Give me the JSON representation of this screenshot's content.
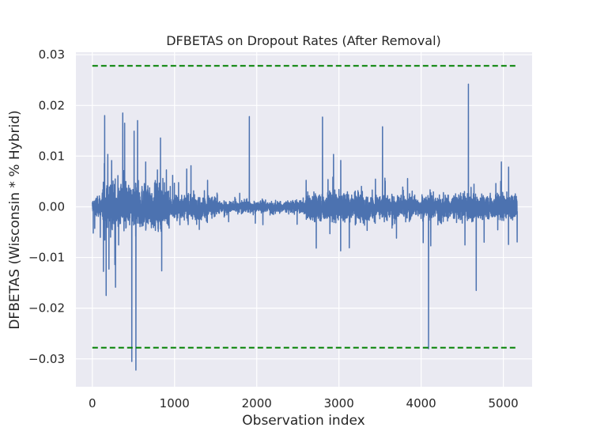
{
  "chart_data": {
    "type": "line",
    "title": "DFBETAS on Dropout Rates (After Removal)",
    "xlabel": "Observation index",
    "ylabel": "DFBETAS (Wisconsin * % Hybrid)",
    "xlim": [
      -200,
      5350
    ],
    "ylim": [
      -0.0355,
      0.0305
    ],
    "x_ticks": [
      0,
      1000,
      2000,
      3000,
      4000,
      5000
    ],
    "x_tick_labels": [
      "0",
      "1000",
      "2000",
      "3000",
      "4000",
      "5000"
    ],
    "y_ticks": [
      0.03,
      0.02,
      0.01,
      0.0,
      -0.01,
      -0.02,
      -0.03
    ],
    "y_tick_labels": [
      "0.03",
      "0.02",
      "0.01",
      "0.00",
      "−0.01",
      "−0.02",
      "−0.03"
    ],
    "grid": true,
    "n_points": 5170,
    "threshold": 0.0278,
    "series": [
      {
        "color": "#4c72b0",
        "notable_points": [
          {
            "x": 150,
            "y": 0.018
          },
          {
            "x": 370,
            "y": 0.0185
          },
          {
            "x": 480,
            "y": -0.0305
          },
          {
            "x": 530,
            "y": -0.0322
          },
          {
            "x": 550,
            "y": 0.017
          },
          {
            "x": 1910,
            "y": 0.0178
          },
          {
            "x": 2800,
            "y": 0.0177
          },
          {
            "x": 3530,
            "y": 0.0158
          },
          {
            "x": 4090,
            "y": -0.028
          },
          {
            "x": 4575,
            "y": 0.0242
          },
          {
            "x": 4670,
            "y": -0.0165
          }
        ]
      },
      {
        "name": "",
        "color": "#008000",
        "style": "dashed",
        "x": [
          0,
          5170
        ],
        "y": [
          0.0278,
          0.0278
        ]
      },
      {
        "name": "",
        "color": "#008000",
        "style": "dashed",
        "x": [
          0,
          5170
        ],
        "y": [
          -0.0278,
          -0.0278
        ]
      }
    ],
    "colors": {
      "background": "#eaeaf2",
      "grid": "#ffffff",
      "line": "#4c72b0",
      "threshold": "#008000"
    }
  }
}
